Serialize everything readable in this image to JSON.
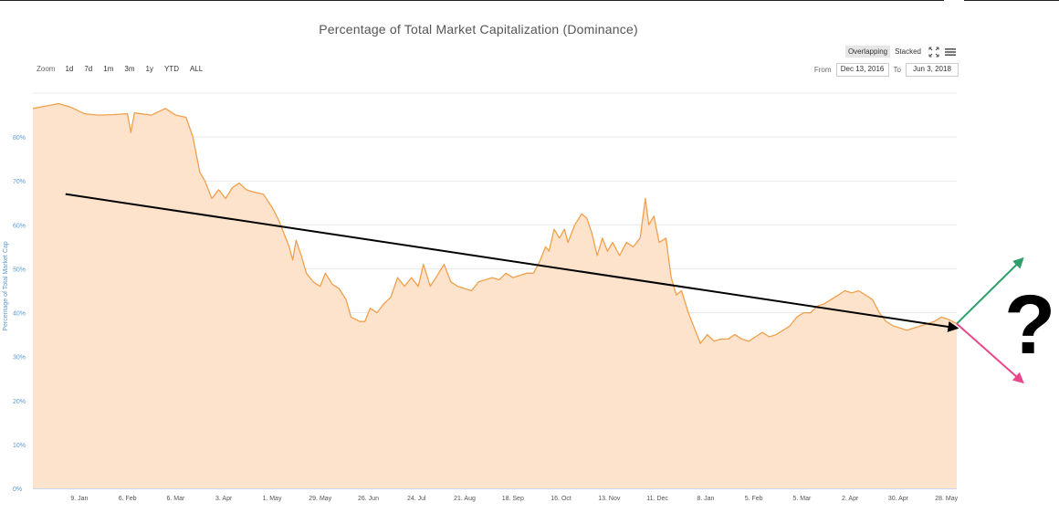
{
  "chart_data": {
    "type": "area",
    "title": "Percentage of Total Market Capitalization (Dominance)",
    "ylabel": "Percentage of Total Market Cap",
    "ylim": [
      0,
      90
    ],
    "yticks": [
      "0%",
      "10%",
      "20%",
      "30%",
      "40%",
      "50%",
      "60%",
      "70%",
      "80%"
    ],
    "ytick_values": [
      0,
      10,
      20,
      30,
      40,
      50,
      60,
      70,
      80
    ],
    "x_range": [
      "2016-12-13",
      "2018-06-03"
    ],
    "xticks": [
      {
        "label": "9. Jan",
        "date": "2017-01-09"
      },
      {
        "label": "6. Feb",
        "date": "2017-02-06"
      },
      {
        "label": "6. Mar",
        "date": "2017-03-06"
      },
      {
        "label": "3. Apr",
        "date": "2017-04-03"
      },
      {
        "label": "1. May",
        "date": "2017-05-01"
      },
      {
        "label": "29. May",
        "date": "2017-05-29"
      },
      {
        "label": "26. Jun",
        "date": "2017-06-26"
      },
      {
        "label": "24. Jul",
        "date": "2017-07-24"
      },
      {
        "label": "21. Aug",
        "date": "2017-08-21"
      },
      {
        "label": "18. Sep",
        "date": "2017-09-18"
      },
      {
        "label": "16. Oct",
        "date": "2017-10-16"
      },
      {
        "label": "13. Nov",
        "date": "2017-11-13"
      },
      {
        "label": "11. Dec",
        "date": "2017-12-11"
      },
      {
        "label": "8. Jan",
        "date": "2018-01-08"
      },
      {
        "label": "5. Feb",
        "date": "2018-02-05"
      },
      {
        "label": "5. Mar",
        "date": "2018-03-05"
      },
      {
        "label": "2. Apr",
        "date": "2018-04-02"
      },
      {
        "label": "30. Apr",
        "date": "2018-04-30"
      },
      {
        "label": "28. May",
        "date": "2018-05-28"
      }
    ],
    "grid": true,
    "series": [
      {
        "color": "#f0a04b",
        "fill": "#fde3cc",
        "points": [
          [
            "2016-12-13",
            86.5
          ],
          [
            "2016-12-20",
            87
          ],
          [
            "2016-12-28",
            87.6
          ],
          [
            "2017-01-04",
            86.8
          ],
          [
            "2017-01-12",
            85.3
          ],
          [
            "2017-01-20",
            85
          ],
          [
            "2017-01-28",
            85.1
          ],
          [
            "2017-02-06",
            85.3
          ],
          [
            "2017-02-08",
            81
          ],
          [
            "2017-02-10",
            85.5
          ],
          [
            "2017-02-20",
            85
          ],
          [
            "2017-02-28",
            86.5
          ],
          [
            "2017-03-06",
            85
          ],
          [
            "2017-03-12",
            84.5
          ],
          [
            "2017-03-16",
            80
          ],
          [
            "2017-03-20",
            72
          ],
          [
            "2017-03-23",
            70
          ],
          [
            "2017-03-27",
            66
          ],
          [
            "2017-03-31",
            68
          ],
          [
            "2017-04-04",
            66
          ],
          [
            "2017-04-08",
            68.5
          ],
          [
            "2017-04-12",
            69.5
          ],
          [
            "2017-04-16",
            68
          ],
          [
            "2017-04-20",
            67.5
          ],
          [
            "2017-04-26",
            67
          ],
          [
            "2017-05-01",
            64
          ],
          [
            "2017-05-05",
            61
          ],
          [
            "2017-05-08",
            58
          ],
          [
            "2017-05-11",
            55
          ],
          [
            "2017-05-13",
            52
          ],
          [
            "2017-05-15",
            56.5
          ],
          [
            "2017-05-18",
            53
          ],
          [
            "2017-05-21",
            49
          ],
          [
            "2017-05-25",
            47
          ],
          [
            "2017-05-29",
            46
          ],
          [
            "2017-06-01",
            49
          ],
          [
            "2017-06-05",
            46.5
          ],
          [
            "2017-06-09",
            45.5
          ],
          [
            "2017-06-13",
            43
          ],
          [
            "2017-06-16",
            39
          ],
          [
            "2017-06-21",
            38
          ],
          [
            "2017-06-24",
            38
          ],
          [
            "2017-06-27",
            41
          ],
          [
            "2017-07-01",
            40
          ],
          [
            "2017-07-05",
            42
          ],
          [
            "2017-07-09",
            43.5
          ],
          [
            "2017-07-13",
            48
          ],
          [
            "2017-07-17",
            46
          ],
          [
            "2017-07-21",
            48
          ],
          [
            "2017-07-25",
            46
          ],
          [
            "2017-07-28",
            51
          ],
          [
            "2017-08-01",
            46
          ],
          [
            "2017-08-05",
            48.5
          ],
          [
            "2017-08-09",
            51
          ],
          [
            "2017-08-13",
            47
          ],
          [
            "2017-08-17",
            46
          ],
          [
            "2017-08-21",
            45.5
          ],
          [
            "2017-08-25",
            45
          ],
          [
            "2017-08-29",
            47
          ],
          [
            "2017-09-02",
            47.5
          ],
          [
            "2017-09-06",
            48
          ],
          [
            "2017-09-10",
            47.5
          ],
          [
            "2017-09-14",
            49
          ],
          [
            "2017-09-18",
            48
          ],
          [
            "2017-09-22",
            48.5
          ],
          [
            "2017-09-26",
            49
          ],
          [
            "2017-09-30",
            49
          ],
          [
            "2017-10-04",
            52
          ],
          [
            "2017-10-07",
            55
          ],
          [
            "2017-10-09",
            54
          ],
          [
            "2017-10-12",
            59
          ],
          [
            "2017-10-15",
            57
          ],
          [
            "2017-10-18",
            59
          ],
          [
            "2017-10-20",
            56
          ],
          [
            "2017-10-24",
            60
          ],
          [
            "2017-10-28",
            62.5
          ],
          [
            "2017-10-31",
            61.5
          ],
          [
            "2017-11-03",
            58
          ],
          [
            "2017-11-06",
            53
          ],
          [
            "2017-11-09",
            57
          ],
          [
            "2017-11-12",
            54
          ],
          [
            "2017-11-15",
            56
          ],
          [
            "2017-11-19",
            53
          ],
          [
            "2017-11-23",
            56
          ],
          [
            "2017-11-27",
            55
          ],
          [
            "2017-12-01",
            57
          ],
          [
            "2017-12-04",
            66
          ],
          [
            "2017-12-06",
            60
          ],
          [
            "2017-12-09",
            62
          ],
          [
            "2017-12-12",
            56
          ],
          [
            "2017-12-16",
            57
          ],
          [
            "2017-12-19",
            48
          ],
          [
            "2017-12-22",
            44
          ],
          [
            "2017-12-25",
            45
          ],
          [
            "2017-12-29",
            40
          ],
          [
            "2018-01-02",
            36
          ],
          [
            "2018-01-05",
            33
          ],
          [
            "2018-01-09",
            35
          ],
          [
            "2018-01-13",
            33.5
          ],
          [
            "2018-01-17",
            34
          ],
          [
            "2018-01-21",
            34
          ],
          [
            "2018-01-25",
            35
          ],
          [
            "2018-01-29",
            34
          ],
          [
            "2018-02-02",
            33.5
          ],
          [
            "2018-02-06",
            34.5
          ],
          [
            "2018-02-10",
            35.5
          ],
          [
            "2018-02-14",
            34.5
          ],
          [
            "2018-02-18",
            35
          ],
          [
            "2018-02-22",
            36
          ],
          [
            "2018-02-26",
            37
          ],
          [
            "2018-03-02",
            39
          ],
          [
            "2018-03-06",
            40
          ],
          [
            "2018-03-10",
            40
          ],
          [
            "2018-03-14",
            41.5
          ],
          [
            "2018-03-18",
            42
          ],
          [
            "2018-03-22",
            43
          ],
          [
            "2018-03-26",
            44
          ],
          [
            "2018-03-30",
            45
          ],
          [
            "2018-04-03",
            44.5
          ],
          [
            "2018-04-07",
            45
          ],
          [
            "2018-04-11",
            44
          ],
          [
            "2018-04-15",
            43
          ],
          [
            "2018-04-19",
            40
          ],
          [
            "2018-04-23",
            38
          ],
          [
            "2018-04-27",
            37
          ],
          [
            "2018-05-01",
            36.5
          ],
          [
            "2018-05-05",
            36
          ],
          [
            "2018-05-09",
            36.5
          ],
          [
            "2018-05-13",
            37
          ],
          [
            "2018-05-17",
            37.5
          ],
          [
            "2018-05-21",
            38
          ],
          [
            "2018-05-25",
            39
          ],
          [
            "2018-05-29",
            38.5
          ],
          [
            "2018-06-03",
            37.5
          ]
        ]
      }
    ],
    "annotations": {
      "trendline": {
        "from": [
          "2017-01-01",
          67
        ],
        "to": [
          "2018-06-03",
          36.5
        ],
        "color": "#000000"
      },
      "up_arrow": {
        "from": [
          "2018-06-03",
          37.5
        ],
        "to": [
          "2018-06-20",
          45
        ],
        "color": "#2e9e6a"
      },
      "down_arrow": {
        "from": [
          "2018-06-03",
          37.5
        ],
        "to": [
          "2018-06-20",
          29
        ],
        "color": "#e8488a"
      },
      "question_mark": "?"
    }
  },
  "controls": {
    "zoom_label": "Zoom",
    "zoom_options": [
      "1d",
      "7d",
      "1m",
      "3m",
      "1y",
      "YTD",
      "ALL"
    ],
    "mode_options": [
      {
        "label": "Overlapping",
        "active": true
      },
      {
        "label": "Stacked",
        "active": false
      }
    ],
    "icons": [
      "expand-icon",
      "menu-icon"
    ],
    "from_label": "From",
    "from_value": "Dec 13, 2016",
    "to_label": "To",
    "to_value": "Jun 3, 2018"
  }
}
